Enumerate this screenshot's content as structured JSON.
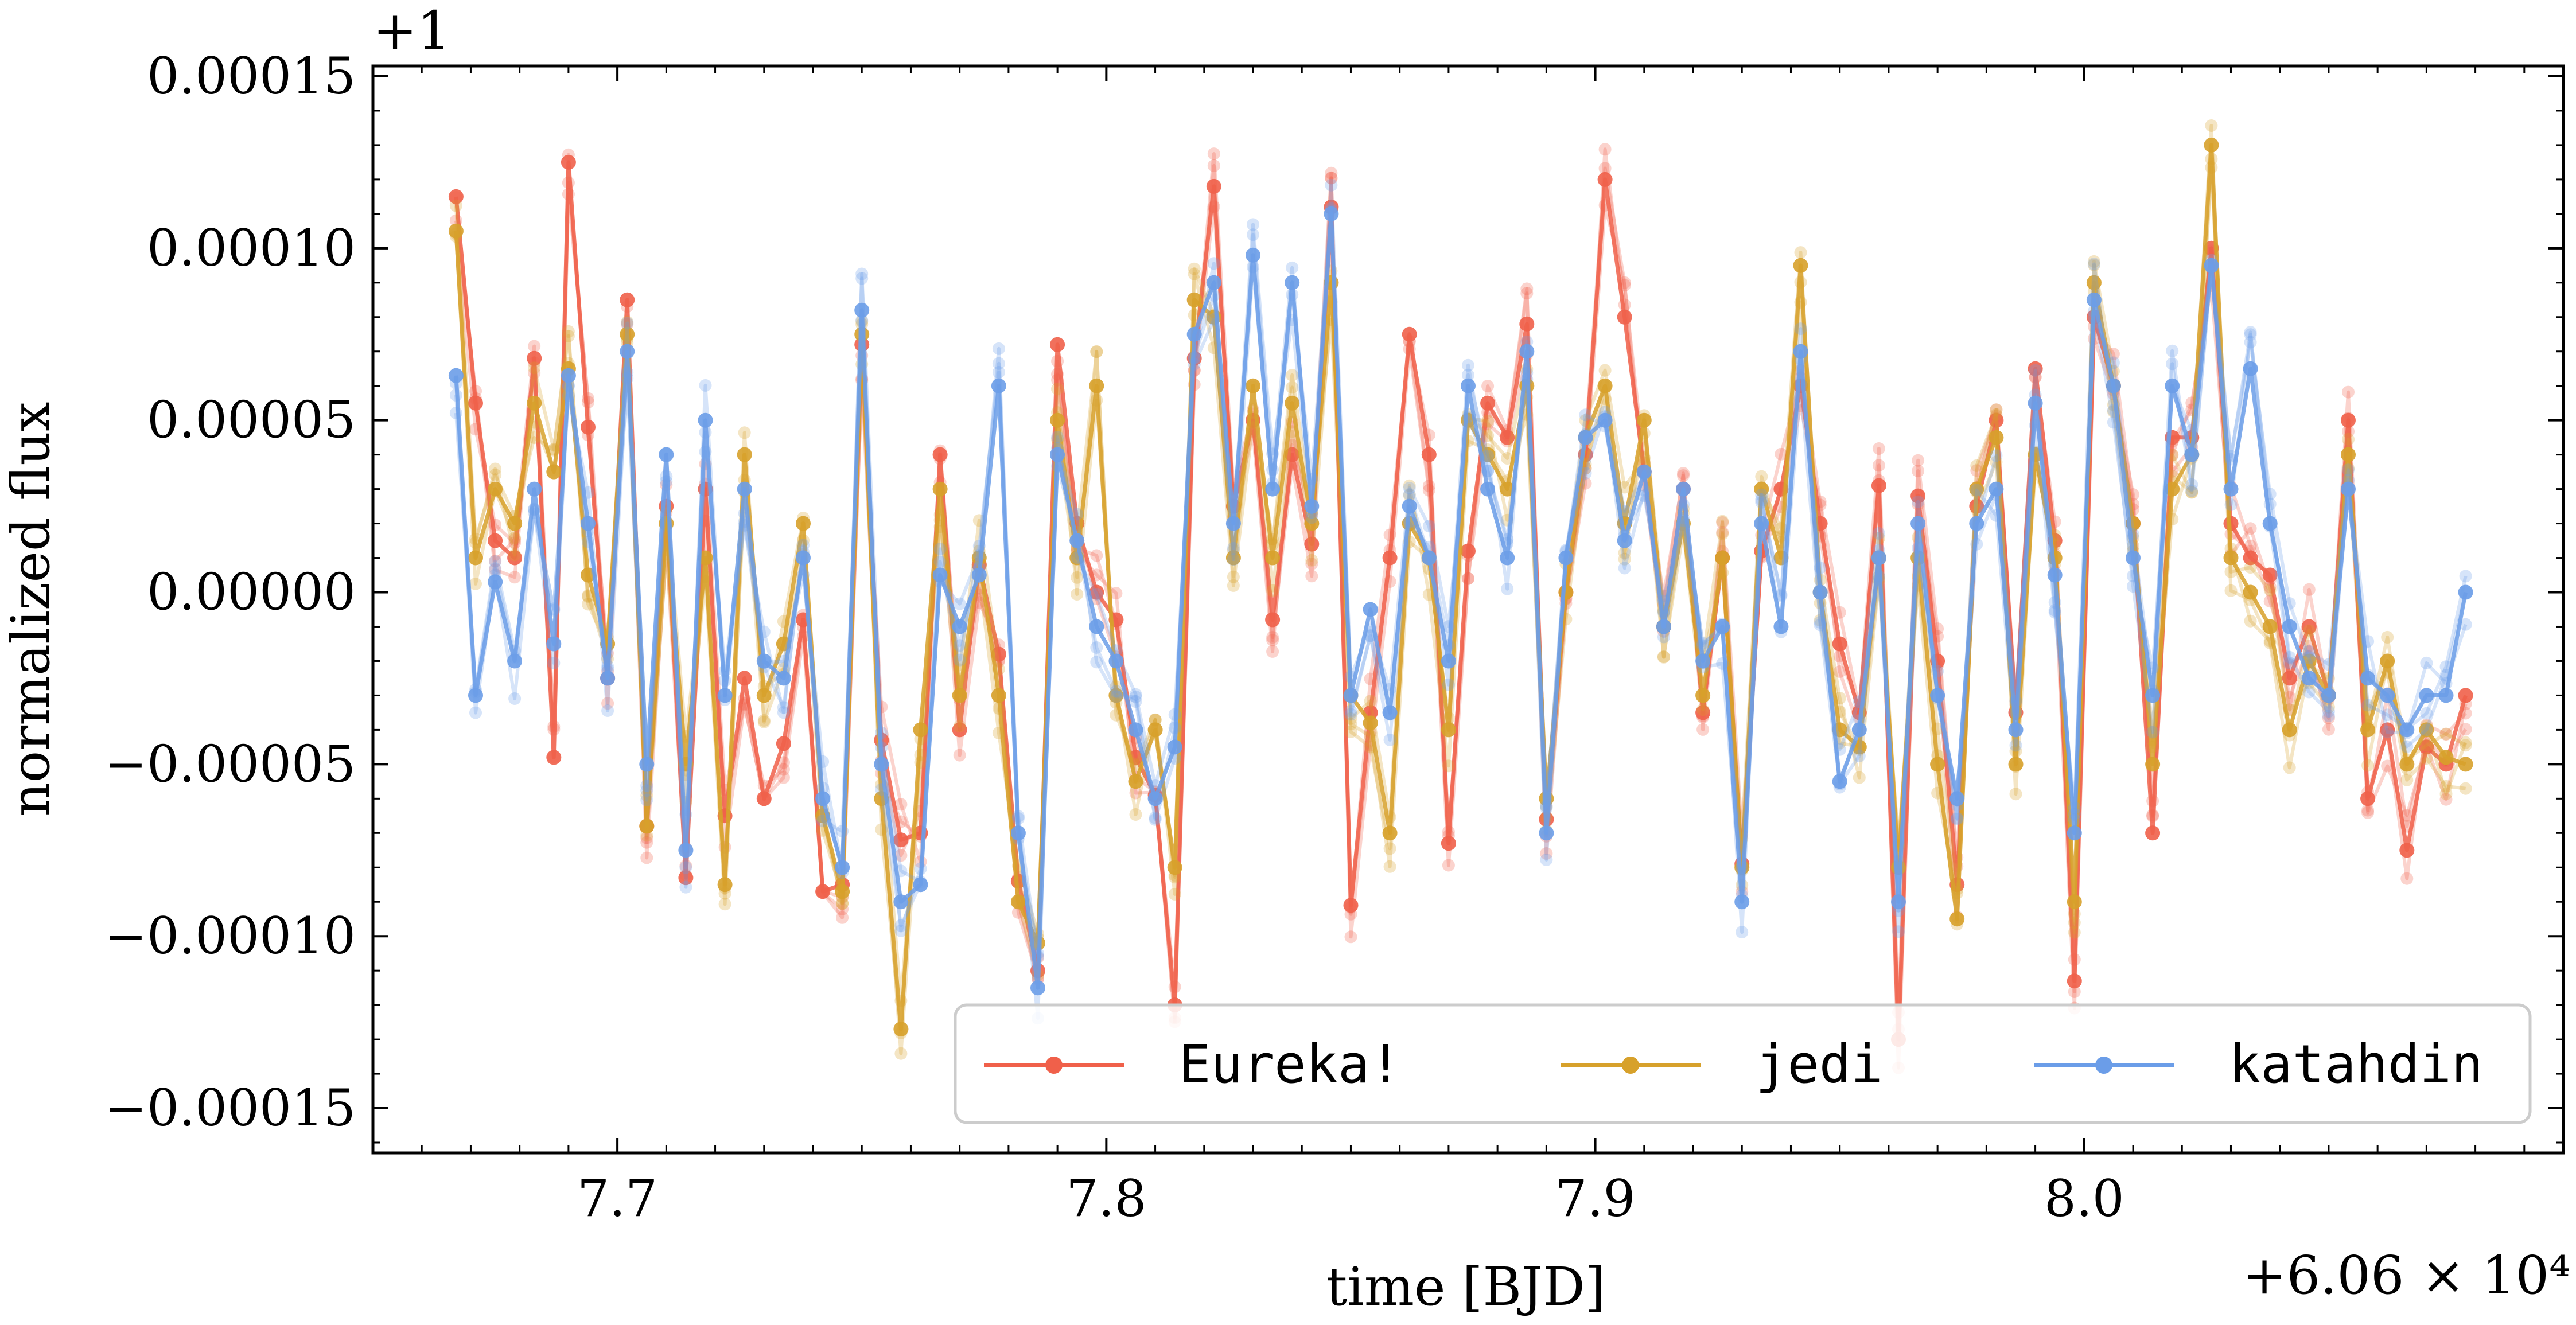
{
  "chart_data": {
    "type": "line",
    "title": "",
    "xlabel": "time [BJD]",
    "ylabel": "normalized flux",
    "x_offset_label": "+6.06 × 10⁴",
    "y_offset_label": "+1",
    "xlim": [
      7.65,
      8.098
    ],
    "ylim": [
      -0.000163,
      0.000153
    ],
    "xticks": [
      7.7,
      7.8,
      7.9,
      8.0
    ],
    "xtick_labels": [
      "7.7",
      "7.8",
      "7.9",
      "8.0"
    ],
    "yticks": [
      0.00015,
      0.0001,
      5e-05,
      0.0,
      -5e-05,
      -0.0001,
      -0.00015
    ],
    "ytick_labels": [
      "0.00015",
      "0.00010",
      "0.00005",
      "0.00000",
      "−0.00005",
      "−0.00010",
      "−0.00015"
    ],
    "grid": false,
    "legend_position": "bottom-right",
    "series": [
      {
        "name": "Eureka!",
        "color": "#f0604a",
        "x": [
          7.667,
          7.671,
          7.675,
          7.679,
          7.683,
          7.687,
          7.69,
          7.694,
          7.698,
          7.702,
          7.706,
          7.71,
          7.714,
          7.718,
          7.722,
          7.726,
          7.73,
          7.734,
          7.738,
          7.742,
          7.746,
          7.75,
          7.754,
          7.758,
          7.762,
          7.766,
          7.77,
          7.774,
          7.778,
          7.782,
          7.786,
          7.79,
          7.794,
          7.798,
          7.802,
          7.806,
          7.81,
          7.814,
          7.818,
          7.822,
          7.826,
          7.83,
          7.834,
          7.838,
          7.842,
          7.846,
          7.85,
          7.854,
          7.858,
          7.862,
          7.866,
          7.87,
          7.874,
          7.878,
          7.882,
          7.886,
          7.89,
          7.894,
          7.898,
          7.902,
          7.906,
          7.91,
          7.914,
          7.918,
          7.922,
          7.926,
          7.93,
          7.934,
          7.938,
          7.942,
          7.946,
          7.95,
          7.954,
          7.958,
          7.962,
          7.966,
          7.97,
          7.974,
          7.978,
          7.982,
          7.986,
          7.99,
          7.994,
          7.998,
          8.002,
          8.006,
          8.01,
          8.014,
          8.018,
          8.022,
          8.026,
          8.03,
          8.034,
          8.038,
          8.042,
          8.046,
          8.05,
          8.054,
          8.058,
          8.062,
          8.066,
          8.07,
          8.074,
          8.078
        ],
        "y": [
          0.000115,
          5.5e-05,
          1.5e-05,
          1e-05,
          6.8e-05,
          -4.8e-05,
          0.000125,
          4.8e-05,
          -2.5e-05,
          8.5e-05,
          -6.8e-05,
          2.5e-05,
          -8.3e-05,
          3e-05,
          -6.5e-05,
          -2.5e-05,
          -6e-05,
          -4.4e-05,
          -8e-06,
          -8.7e-05,
          -8.5e-05,
          7.2e-05,
          -4.3e-05,
          -7.2e-05,
          -7e-05,
          4e-05,
          -4e-05,
          8e-06,
          -1.8e-05,
          -8.4e-05,
          -0.00011,
          7.2e-05,
          2e-05,
          0.0,
          -8e-06,
          -4.8e-05,
          -5.9e-05,
          -0.00012,
          6.8e-05,
          0.000118,
          2.5e-05,
          5e-05,
          -8e-06,
          4e-05,
          1.4e-05,
          0.000112,
          -9.1e-05,
          -3.5e-05,
          1e-05,
          7.5e-05,
          4e-05,
          -7.3e-05,
          1.2e-05,
          5.5e-05,
          4.5e-05,
          7.8e-05,
          -6.6e-05,
          0.0,
          4e-05,
          0.00012,
          8e-05,
          3.5e-05,
          -1e-05,
          3e-05,
          -3.5e-05,
          1e-05,
          -7.9e-05,
          1.2e-05,
          3e-05,
          6e-05,
          2e-05,
          -1.5e-05,
          -3.5e-05,
          3.1e-05,
          -0.00013,
          2.8e-05,
          -2e-05,
          -8.5e-05,
          2.5e-05,
          5e-05,
          -3.5e-05,
          6.5e-05,
          1.5e-05,
          -0.000113,
          8e-05,
          6e-05,
          2e-05,
          -7e-05,
          4.5e-05,
          4.5e-05,
          0.0001,
          2e-05,
          1e-05,
          5e-06,
          -2.5e-05,
          -1e-05,
          -3e-05,
          5e-05,
          -6e-05,
          -4e-05,
          -7.5e-05,
          -4.5e-05,
          -5e-05,
          -3e-05
        ]
      },
      {
        "name": "jedi",
        "color": "#d7a12b",
        "x": [
          7.667,
          7.671,
          7.675,
          7.679,
          7.683,
          7.687,
          7.69,
          7.694,
          7.698,
          7.702,
          7.706,
          7.71,
          7.714,
          7.718,
          7.722,
          7.726,
          7.73,
          7.734,
          7.738,
          7.742,
          7.746,
          7.75,
          7.754,
          7.758,
          7.762,
          7.766,
          7.77,
          7.774,
          7.778,
          7.782,
          7.786,
          7.79,
          7.794,
          7.798,
          7.802,
          7.806,
          7.81,
          7.814,
          7.818,
          7.822,
          7.826,
          7.83,
          7.834,
          7.838,
          7.842,
          7.846,
          7.85,
          7.854,
          7.858,
          7.862,
          7.866,
          7.87,
          7.874,
          7.878,
          7.882,
          7.886,
          7.89,
          7.894,
          7.898,
          7.902,
          7.906,
          7.91,
          7.914,
          7.918,
          7.922,
          7.926,
          7.93,
          7.934,
          7.938,
          7.942,
          7.946,
          7.95,
          7.954,
          7.958,
          7.962,
          7.966,
          7.97,
          7.974,
          7.978,
          7.982,
          7.986,
          7.99,
          7.994,
          7.998,
          8.002,
          8.006,
          8.01,
          8.014,
          8.018,
          8.022,
          8.026,
          8.03,
          8.034,
          8.038,
          8.042,
          8.046,
          8.05,
          8.054,
          8.058,
          8.062,
          8.066,
          8.07,
          8.074,
          8.078
        ],
        "y": [
          0.000105,
          1e-05,
          3e-05,
          2e-05,
          5.5e-05,
          3.5e-05,
          6.5e-05,
          5e-06,
          -1.5e-05,
          7.5e-05,
          -6.8e-05,
          2e-05,
          -5e-05,
          1e-05,
          -8.5e-05,
          4e-05,
          -3e-05,
          -1.5e-05,
          2e-05,
          -6.5e-05,
          -8.7e-05,
          7.5e-05,
          -6e-05,
          -0.000127,
          -4e-05,
          3e-05,
          -3e-05,
          1e-05,
          -3e-05,
          -9e-05,
          -0.000102,
          5e-05,
          1e-05,
          6e-05,
          -3e-05,
          -5.5e-05,
          -4e-05,
          -8e-05,
          8.5e-05,
          8e-05,
          1e-05,
          6e-05,
          1e-05,
          5.5e-05,
          2e-05,
          9e-05,
          -3e-05,
          -3.8e-05,
          -7e-05,
          2e-05,
          1e-05,
          -4e-05,
          5e-05,
          4e-05,
          3e-05,
          6e-05,
          -6e-05,
          0.0,
          4.5e-05,
          6e-05,
          2e-05,
          5e-05,
          -1e-05,
          2e-05,
          -3e-05,
          1e-05,
          -8e-05,
          3e-05,
          1e-05,
          9.5e-05,
          0.0,
          -4e-05,
          -4.5e-05,
          1e-05,
          -8e-05,
          1e-05,
          -5e-05,
          -9.5e-05,
          3e-05,
          4.5e-05,
          -5e-05,
          4e-05,
          1e-05,
          -9e-05,
          9e-05,
          6e-05,
          2e-05,
          -5e-05,
          3e-05,
          4e-05,
          0.00013,
          1e-05,
          0.0,
          -1e-05,
          -4e-05,
          -2e-05,
          -3e-05,
          4e-05,
          -4e-05,
          -2e-05,
          -5e-05,
          -4e-05,
          -4.8e-05,
          -5e-05
        ]
      },
      {
        "name": "katahdin",
        "color": "#6b9de8",
        "x": [
          7.667,
          7.671,
          7.675,
          7.679,
          7.683,
          7.687,
          7.69,
          7.694,
          7.698,
          7.702,
          7.706,
          7.71,
          7.714,
          7.718,
          7.722,
          7.726,
          7.73,
          7.734,
          7.738,
          7.742,
          7.746,
          7.75,
          7.754,
          7.758,
          7.762,
          7.766,
          7.77,
          7.774,
          7.778,
          7.782,
          7.786,
          7.79,
          7.794,
          7.798,
          7.802,
          7.806,
          7.81,
          7.814,
          7.818,
          7.822,
          7.826,
          7.83,
          7.834,
          7.838,
          7.842,
          7.846,
          7.85,
          7.854,
          7.858,
          7.862,
          7.866,
          7.87,
          7.874,
          7.878,
          7.882,
          7.886,
          7.89,
          7.894,
          7.898,
          7.902,
          7.906,
          7.91,
          7.914,
          7.918,
          7.922,
          7.926,
          7.93,
          7.934,
          7.938,
          7.942,
          7.946,
          7.95,
          7.954,
          7.958,
          7.962,
          7.966,
          7.97,
          7.974,
          7.978,
          7.982,
          7.986,
          7.99,
          7.994,
          7.998,
          8.002,
          8.006,
          8.01,
          8.014,
          8.018,
          8.022,
          8.026,
          8.03,
          8.034,
          8.038,
          8.042,
          8.046,
          8.05,
          8.054,
          8.058,
          8.062,
          8.066,
          8.07,
          8.074,
          8.078
        ],
        "y": [
          6.3e-05,
          -3e-05,
          3e-06,
          -2e-05,
          3e-05,
          -1.5e-05,
          6.3e-05,
          2e-05,
          -2.5e-05,
          7e-05,
          -5e-05,
          4e-05,
          -7.5e-05,
          5e-05,
          -3e-05,
          3e-05,
          -2e-05,
          -2.5e-05,
          1e-05,
          -6e-05,
          -8e-05,
          8.2e-05,
          -5e-05,
          -9e-05,
          -8.5e-05,
          5e-06,
          -1e-05,
          5e-06,
          6e-05,
          -7e-05,
          -0.000115,
          4e-05,
          1.5e-05,
          -1e-05,
          -2e-05,
          -4e-05,
          -6e-05,
          -4.5e-05,
          7.5e-05,
          9e-05,
          2e-05,
          9.8e-05,
          3e-05,
          9e-05,
          2.5e-05,
          0.00011,
          -3e-05,
          -5e-06,
          -3.5e-05,
          2.5e-05,
          1e-05,
          -2e-05,
          6e-05,
          3e-05,
          1e-05,
          7e-05,
          -7e-05,
          1e-05,
          4.5e-05,
          5e-05,
          1.5e-05,
          3.5e-05,
          -1e-05,
          3e-05,
          -2e-05,
          -1e-05,
          -9e-05,
          2e-05,
          -1e-05,
          7e-05,
          0.0,
          -5.5e-05,
          -4e-05,
          1e-05,
          -9e-05,
          2e-05,
          -3e-05,
          -6e-05,
          2e-05,
          3e-05,
          -4e-05,
          5.5e-05,
          5e-06,
          -7e-05,
          8.5e-05,
          6e-05,
          1e-05,
          -3e-05,
          6e-05,
          4e-05,
          9.5e-05,
          3e-05,
          6.5e-05,
          2e-05,
          -1e-05,
          -2.5e-05,
          -3e-05,
          3e-05,
          -2.5e-05,
          -3e-05,
          -4e-05,
          -3e-05,
          -3e-05,
          0.0
        ]
      }
    ]
  }
}
